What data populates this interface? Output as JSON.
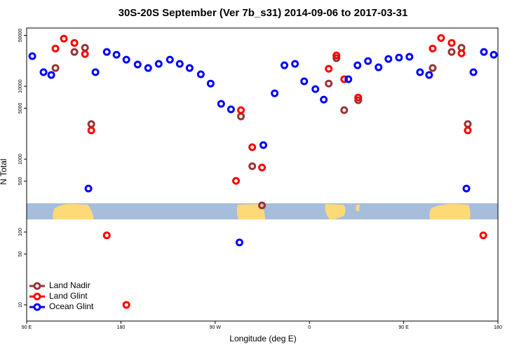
{
  "chart_data": {
    "type": "scatter",
    "title": "30S-20S September (Ver 7b_s31)   2014-09-06 to 2017-03-31",
    "x_label": "Longitude (deg E)",
    "y_label": "N Total",
    "xlim": [
      -270,
      180
    ],
    "xticks": [
      {
        "value": -270,
        "label": "90 E"
      },
      {
        "value": -180,
        "label": "180"
      },
      {
        "value": -90,
        "label": "90 W"
      },
      0,
      {
        "value": 90,
        "label": "90 E"
      },
      180
    ],
    "ylim": [
      6,
      63000
    ],
    "log_y": true,
    "yticks": [
      10,
      50,
      100,
      500,
      1000,
      5000,
      10000,
      50000
    ],
    "legend": "bottom-left",
    "series": [
      {
        "name": "Land Nadir",
        "color": "#993333",
        "x": [
          -242.5,
          -224.4,
          -214.3,
          -208.3,
          -65.4,
          -54.6,
          -45.3,
          18.4,
          25.8,
          33.2,
          46.6,
          117.7,
          135.8,
          145.2,
          151.2
        ],
        "values": [
          17800,
          29600,
          33800,
          3030,
          3860,
          800,
          232,
          10900,
          24300,
          4710,
          6430,
          17800,
          29600,
          33800,
          3030
        ]
      },
      {
        "name": "Land Glint",
        "color": "#ff0000",
        "x": [
          -242.5,
          -234.5,
          -224.4,
          -214.3,
          -208.3,
          -193.5,
          -174.8,
          -70.1,
          -65.4,
          -54.6,
          -45.3,
          18.4,
          25.8,
          33.2,
          46.6,
          117.7,
          125.7,
          135.8,
          145.2,
          151.2,
          166
        ],
        "values": [
          33000,
          45100,
          39400,
          27700,
          2480,
          90,
          10,
          504,
          4710,
          1460,
          767,
          17400,
          26500,
          12500,
          7010,
          33000,
          46000,
          39400,
          28300,
          2480,
          90
        ]
      },
      {
        "name": "Ocean Glint",
        "color": "#0000ff",
        "x": [
          -264.6,
          -253.9,
          -246.5,
          -211,
          -204.3,
          -193.5,
          -184.2,
          -174.8,
          -164,
          -154,
          -143.9,
          -133.2,
          -123.8,
          -114.4,
          -103.7,
          -94.3,
          -84.3,
          -74.9,
          -66.8,
          -44,
          -33.2,
          -23.9,
          -13.8,
          -5,
          5.7,
          13.7,
          37.2,
          45.9,
          55.9,
          66,
          75.4,
          85.5,
          95.5,
          105.6,
          114.3,
          149.9,
          156.6,
          166.6,
          176
        ],
        "values": [
          25900,
          15600,
          14300,
          395,
          15600,
          29600,
          27100,
          23200,
          19900,
          17800,
          20300,
          23200,
          20300,
          17800,
          14600,
          10900,
          5750,
          4820,
          72,
          1560,
          8010,
          19400,
          20300,
          11700,
          9150,
          6560,
          12500,
          19400,
          22200,
          18200,
          23700,
          24800,
          25400,
          15600,
          14300,
          395,
          15600,
          29600,
          27100
        ]
      }
    ]
  }
}
